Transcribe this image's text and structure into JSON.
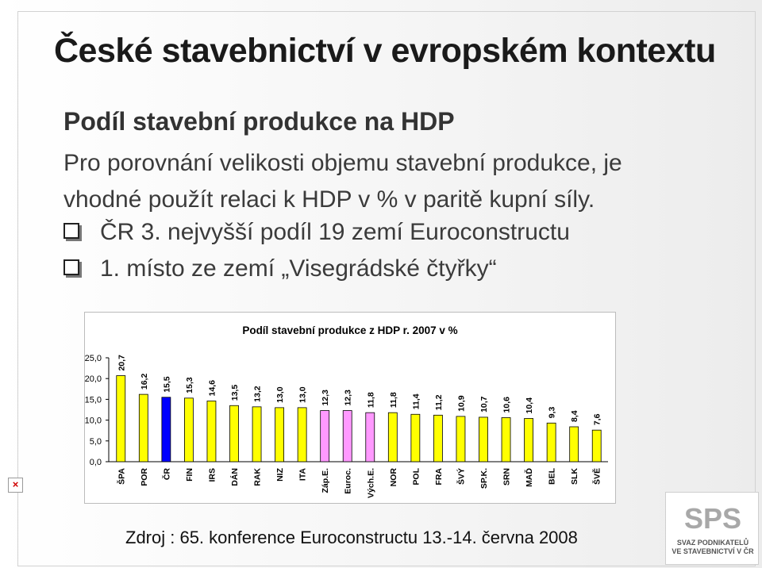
{
  "slide": {
    "title": "České stavebnictví v evropském kontextu",
    "subheading": "Podíl stavební produkce na HDP",
    "paragraph": "Pro porovnání velikosti objemu stavební produkce, je vhodné použít relaci k HDP v % v paritě kupní síly.",
    "bullets": [
      "ČR 3. nejvyšší podíl 19 zemí Euroconstructu",
      "1. místo ze zemí „Visegrádské čtyřky“"
    ],
    "source": "Zdroj : 65. konference Euroconstructu 13.-14. června 2008"
  },
  "logo": {
    "caption_line1": "SVAZ PODNIKATELŮ",
    "caption_line2": "VE STAVEBNICTVÍ V ČR",
    "icon": "sps-logo-icon"
  },
  "broken_image_icon": "broken-image-icon",
  "chart_data": {
    "type": "bar",
    "title": "Podíl stavební produkce z HDP r. 2007 v %",
    "categories": [
      "ŠPA",
      "POR",
      "ČR",
      "FIN",
      "IRS",
      "DÁN",
      "RAK",
      "NIZ",
      "ITA",
      "Záp.E.",
      "Euroc.",
      "Vých.E.",
      "NOR",
      "POL",
      "FRA",
      "ŠVÝ",
      "SP.K.",
      "SRN",
      "MAĎ",
      "BEL",
      "SLK",
      "ŠVĚ"
    ],
    "values": [
      20.7,
      16.2,
      15.5,
      15.3,
      14.6,
      13.5,
      13.2,
      13.0,
      13.0,
      12.3,
      12.3,
      11.8,
      11.8,
      11.4,
      11.2,
      10.9,
      10.7,
      10.6,
      10.4,
      9.3,
      8.4,
      7.6
    ],
    "value_labels": [
      "20,7",
      "16,2",
      "15,5",
      "15,3",
      "14,6",
      "13,5",
      "13,2",
      "13,0",
      "13,0",
      "12,3",
      "12,3",
      "11,8",
      "11,8",
      "11,4",
      "11,2",
      "10,9",
      "10,7",
      "10,6",
      "10,4",
      "9,3",
      "8,4",
      "7,6"
    ],
    "ylim": [
      0,
      25
    ],
    "yticks": [
      "0,0",
      "5,0",
      "10,0",
      "15,0",
      "20,0",
      "25,0"
    ],
    "grid": false,
    "legend": "none",
    "colors": {
      "default": "#ffff00",
      "highlight": "#0000ff",
      "aggregate": "#ff99ff",
      "border": "#000000"
    },
    "highlight_categories": [
      "ČR"
    ],
    "aggregate_categories": [
      "Záp.E.",
      "Euroc.",
      "Vých.E."
    ]
  }
}
